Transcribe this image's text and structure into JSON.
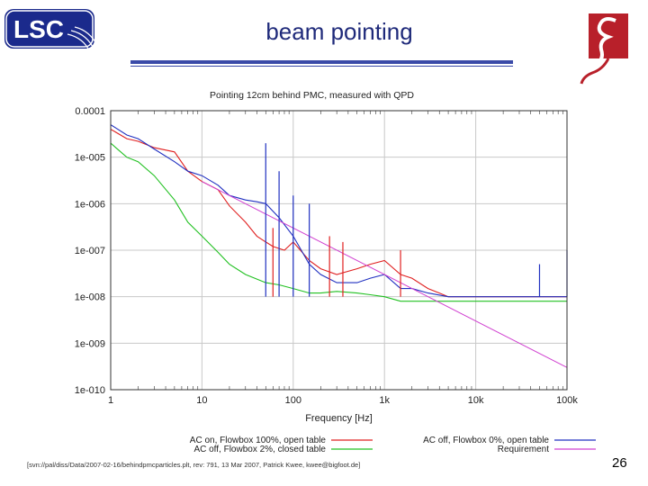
{
  "slide": {
    "title": "beam pointing",
    "page_number": "26",
    "footnote": "[svn://pal/diss/Data/2007-02-16/behindpmcparticles.plt, rev: 791, 13 Mar 2007, Patrick Kwee, kwee@bigfoot.de]",
    "logo_text": "LSC"
  },
  "colors": {
    "title": "#1f2a7a",
    "ac_on_flowbox100": "#e02020",
    "ac_off_flowbox2": "#20c020",
    "ac_off_flowbox0": "#2030c0",
    "requirement": "#d040d0"
  },
  "chart_data": {
    "type": "line",
    "title": "Pointing 12cm behind PMC, measured with QPD",
    "xlabel": "Frequency [Hz]",
    "ylabel": "",
    "xscale": "log",
    "yscale": "log",
    "xlim": [
      1,
      100000
    ],
    "ylim": [
      1e-10,
      0.0001
    ],
    "grid": true,
    "legend_position": "bottom",
    "x_ticks": [
      {
        "value": 1,
        "label": "1"
      },
      {
        "value": 10,
        "label": "10"
      },
      {
        "value": 100,
        "label": "100"
      },
      {
        "value": 1000,
        "label": "1k"
      },
      {
        "value": 10000,
        "label": "10k"
      },
      {
        "value": 100000,
        "label": "100k"
      }
    ],
    "y_ticks": [
      {
        "value": 0.0001,
        "label": "0.0001"
      },
      {
        "value": 1e-05,
        "label": "1e-005"
      },
      {
        "value": 1e-06,
        "label": "1e-006"
      },
      {
        "value": 1e-07,
        "label": "1e-007"
      },
      {
        "value": 1e-08,
        "label": "1e-008"
      },
      {
        "value": 1e-09,
        "label": "1e-009"
      },
      {
        "value": 1e-10,
        "label": "1e-010"
      }
    ],
    "series": [
      {
        "name": "AC on, Flowbox 100%, open table",
        "color": "#e02020",
        "x": [
          1,
          1.5,
          2,
          3,
          5,
          7,
          10,
          15,
          20,
          30,
          40,
          50,
          60,
          80,
          100,
          150,
          200,
          300,
          500,
          700,
          1000,
          1500,
          2000,
          3000,
          4000,
          5000,
          10000,
          20000,
          50000,
          100000
        ],
        "y": [
          4e-05,
          2.5e-05,
          2.2e-05,
          1.6e-05,
          1.3e-05,
          5e-06,
          3e-06,
          2e-06,
          9e-07,
          4e-07,
          2e-07,
          1.5e-07,
          1.2e-07,
          1e-07,
          1.5e-07,
          6e-08,
          4e-08,
          3e-08,
          4e-08,
          5e-08,
          6e-08,
          3e-08,
          2.5e-08,
          1.5e-08,
          1.2e-08,
          1e-08,
          1e-08,
          1e-08,
          1e-08,
          1e-08
        ]
      },
      {
        "name": "AC off, Flowbox 2%, closed table",
        "color": "#20c020",
        "x": [
          1,
          1.5,
          2,
          3,
          5,
          7,
          10,
          15,
          20,
          30,
          50,
          70,
          100,
          150,
          200,
          300,
          500,
          700,
          1000,
          1500,
          2000,
          3000,
          5000,
          10000,
          20000,
          50000,
          100000
        ],
        "y": [
          2e-05,
          1e-05,
          8e-06,
          4e-06,
          1.2e-06,
          4e-07,
          2e-07,
          9e-08,
          5e-08,
          3e-08,
          2e-08,
          1.8e-08,
          1.5e-08,
          1.2e-08,
          1.2e-08,
          1.3e-08,
          1.2e-08,
          1.1e-08,
          1e-08,
          8e-09,
          8e-09,
          8e-09,
          8e-09,
          8e-09,
          8e-09,
          8e-09,
          8e-09
        ]
      },
      {
        "name": "AC off, Flowbox 0%, open table",
        "color": "#2030c0",
        "x": [
          1,
          1.5,
          2,
          3,
          5,
          7,
          10,
          15,
          20,
          30,
          40,
          50,
          70,
          100,
          150,
          200,
          300,
          500,
          700,
          1000,
          1500,
          2000,
          3000,
          5000,
          10000,
          20000,
          50000,
          100000
        ],
        "y": [
          5e-05,
          3e-05,
          2.5e-05,
          1.5e-05,
          8e-06,
          5e-06,
          4e-06,
          2.5e-06,
          1.5e-06,
          1.2e-06,
          1.1e-06,
          1e-06,
          5e-07,
          2e-07,
          5e-08,
          3e-08,
          2e-08,
          2e-08,
          2.5e-08,
          3e-08,
          1.5e-08,
          1.5e-08,
          1.2e-08,
          1e-08,
          1e-08,
          1e-08,
          1e-08,
          1e-08
        ]
      },
      {
        "name": "Requirement",
        "color": "#d040d0",
        "x": [
          10,
          100000
        ],
        "y": [
          3e-06,
          3e-10
        ]
      }
    ],
    "spikes": [
      {
        "series": "AC off, Flowbox 0%, open table",
        "x": 50,
        "y": 2e-05
      },
      {
        "series": "AC off, Flowbox 0%, open table",
        "x": 70,
        "y": 5e-06
      },
      {
        "series": "AC off, Flowbox 0%, open table",
        "x": 100,
        "y": 1.5e-06
      },
      {
        "series": "AC off, Flowbox 0%, open table",
        "x": 150,
        "y": 1e-06
      },
      {
        "series": "AC off, Flowbox 0%, open table",
        "x": 50000,
        "y": 5e-08
      },
      {
        "series": "AC off, Flowbox 0%, open table",
        "x": 100000,
        "y": 1e-07
      },
      {
        "series": "AC on, Flowbox 100%, open table",
        "x": 60,
        "y": 3e-07
      },
      {
        "series": "AC on, Flowbox 100%, open table",
        "x": 250,
        "y": 2e-07
      },
      {
        "series": "AC on, Flowbox 100%, open table",
        "x": 350,
        "y": 1.5e-07
      },
      {
        "series": "AC on, Flowbox 100%, open table",
        "x": 1500,
        "y": 1e-07
      }
    ]
  }
}
